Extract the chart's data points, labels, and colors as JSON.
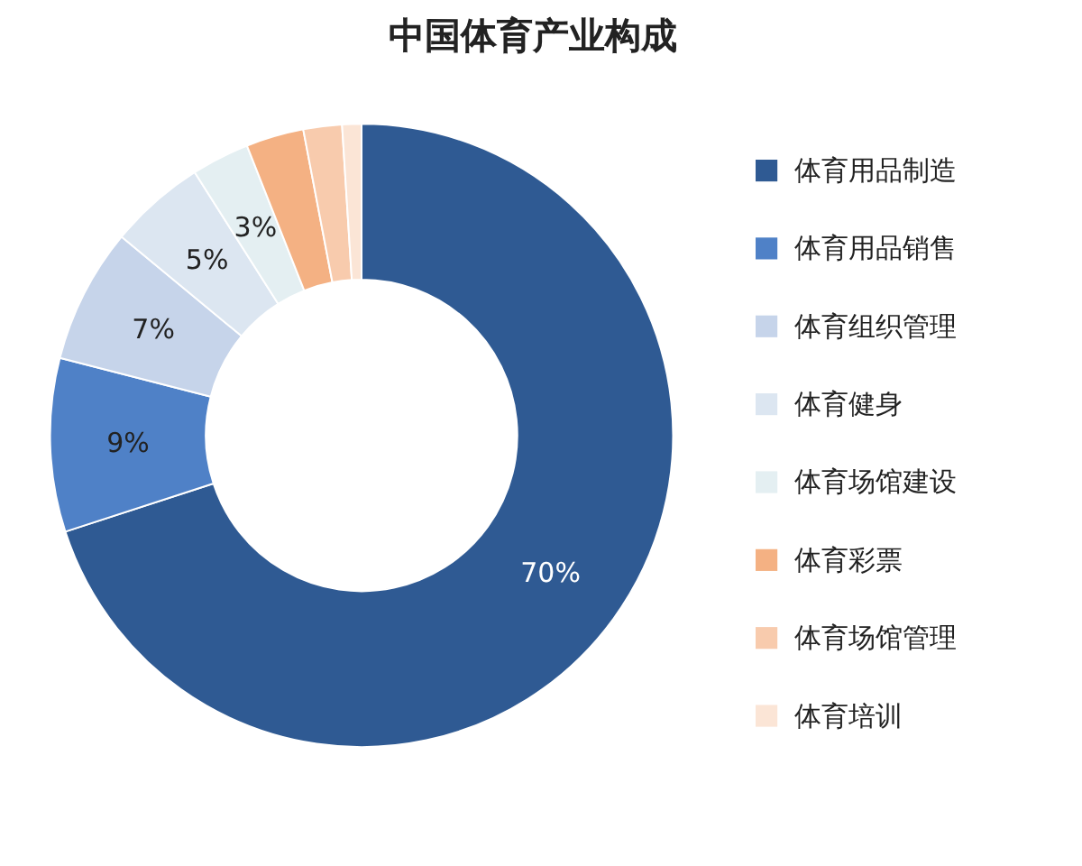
{
  "chart_data": {
    "type": "donut",
    "title": "中国体育产业构成",
    "categories": [
      "体育用品制造",
      "体育用品销售",
      "体育组织管理",
      "体育健身",
      "体育场馆建设",
      "体育彩票",
      "体育场馆管理",
      "体育培训"
    ],
    "values": [
      70,
      9,
      7,
      5,
      3,
      3,
      2,
      1
    ],
    "value_labels": [
      "70%",
      "9%",
      "7%",
      "5%",
      "3%",
      null,
      null,
      null
    ],
    "colors": [
      "#2f5a93",
      "#4f81c7",
      "#c6d4ea",
      "#dce6f1",
      "#e4eff2",
      "#f4b183",
      "#f8cbad",
      "#fbe5d6"
    ],
    "legend": "right"
  }
}
